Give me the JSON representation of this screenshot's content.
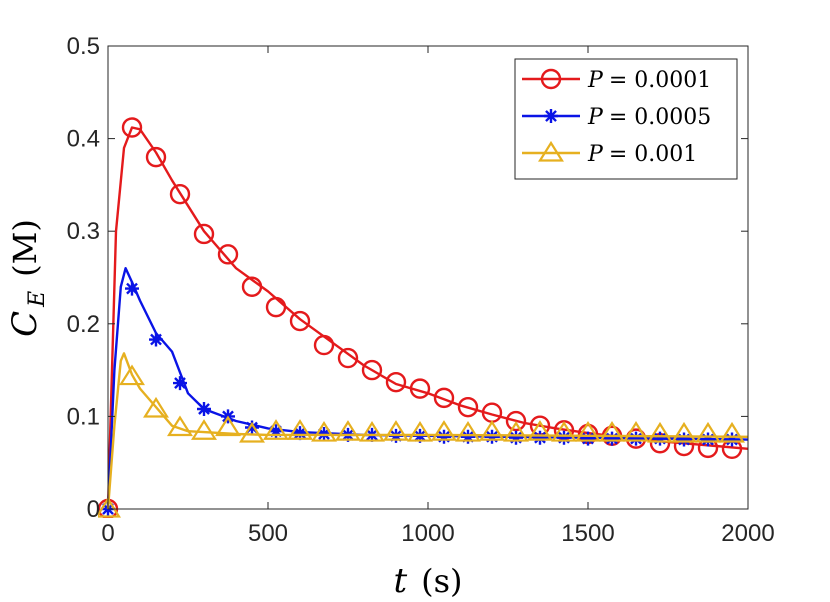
{
  "chart_data": {
    "type": "line",
    "title": "",
    "xlabel": {
      "var": "t",
      "unit": "(s)"
    },
    "ylabel": {
      "var": "C",
      "sub": "E",
      "unit": "(M)"
    },
    "xlim": [
      0,
      2000
    ],
    "ylim": [
      0,
      0.5
    ],
    "xticks": [
      0,
      500,
      1000,
      1500,
      2000
    ],
    "xtick_labels": [
      "0",
      "500",
      "1000",
      "1500",
      "2000"
    ],
    "yticks": [
      0,
      0.1,
      0.2,
      0.3,
      0.4,
      0.5
    ],
    "ytick_labels": [
      "0",
      "0.1",
      "0.2",
      "0.3",
      "0.4",
      "0.5"
    ],
    "grid": false,
    "legend_position": "top-right",
    "series": [
      {
        "name": "P = 0.0001",
        "label_var": "P",
        "label_value": "= 0.0001",
        "color": "#e41a1c",
        "marker": "circle",
        "line": [
          [
            0,
            0
          ],
          [
            25,
            0.3
          ],
          [
            50,
            0.39
          ],
          [
            75,
            0.412
          ],
          [
            100,
            0.41
          ],
          [
            150,
            0.385
          ],
          [
            200,
            0.355
          ],
          [
            300,
            0.3
          ],
          [
            400,
            0.26
          ],
          [
            500,
            0.235
          ],
          [
            600,
            0.205
          ],
          [
            700,
            0.18
          ],
          [
            800,
            0.155
          ],
          [
            900,
            0.135
          ],
          [
            1000,
            0.125
          ],
          [
            1100,
            0.112
          ],
          [
            1200,
            0.102
          ],
          [
            1300,
            0.093
          ],
          [
            1400,
            0.087
          ],
          [
            1500,
            0.082
          ],
          [
            1600,
            0.078
          ],
          [
            1700,
            0.074
          ],
          [
            1800,
            0.071
          ],
          [
            1900,
            0.068
          ],
          [
            2000,
            0.065
          ]
        ],
        "markers": [
          [
            0,
            0
          ],
          [
            75,
            0.412
          ],
          [
            150,
            0.38
          ],
          [
            225,
            0.34
          ],
          [
            300,
            0.297
          ],
          [
            375,
            0.275
          ],
          [
            450,
            0.24
          ],
          [
            525,
            0.218
          ],
          [
            600,
            0.203
          ],
          [
            675,
            0.177
          ],
          [
            750,
            0.163
          ],
          [
            825,
            0.15
          ],
          [
            900,
            0.137
          ],
          [
            975,
            0.13
          ],
          [
            1050,
            0.12
          ],
          [
            1125,
            0.11
          ],
          [
            1200,
            0.104
          ],
          [
            1275,
            0.095
          ],
          [
            1350,
            0.09
          ],
          [
            1425,
            0.085
          ],
          [
            1500,
            0.081
          ],
          [
            1575,
            0.079
          ],
          [
            1650,
            0.076
          ],
          [
            1725,
            0.071
          ],
          [
            1800,
            0.068
          ],
          [
            1875,
            0.066
          ],
          [
            1950,
            0.065
          ]
        ]
      },
      {
        "name": "P = 0.0005",
        "label_var": "P",
        "label_value": "= 0.0005",
        "color": "#0a14e6",
        "marker": "asterisk",
        "line": [
          [
            0,
            0
          ],
          [
            20,
            0.15
          ],
          [
            40,
            0.24
          ],
          [
            55,
            0.26
          ],
          [
            75,
            0.245
          ],
          [
            100,
            0.225
          ],
          [
            150,
            0.19
          ],
          [
            200,
            0.17
          ],
          [
            250,
            0.125
          ],
          [
            300,
            0.108
          ],
          [
            400,
            0.095
          ],
          [
            500,
            0.087
          ],
          [
            600,
            0.083
          ],
          [
            800,
            0.08
          ],
          [
            1000,
            0.079
          ],
          [
            1500,
            0.077
          ],
          [
            2000,
            0.075
          ]
        ],
        "markers": [
          [
            0,
            0
          ],
          [
            75,
            0.238
          ],
          [
            150,
            0.183
          ],
          [
            225,
            0.136
          ],
          [
            300,
            0.108
          ],
          [
            375,
            0.1
          ],
          [
            450,
            0.088
          ],
          [
            525,
            0.084
          ],
          [
            600,
            0.082
          ],
          [
            675,
            0.081
          ],
          [
            750,
            0.08
          ],
          [
            825,
            0.08
          ],
          [
            900,
            0.079
          ],
          [
            975,
            0.079
          ],
          [
            1050,
            0.078
          ],
          [
            1125,
            0.078
          ],
          [
            1200,
            0.078
          ],
          [
            1275,
            0.077
          ],
          [
            1350,
            0.077
          ],
          [
            1425,
            0.077
          ],
          [
            1500,
            0.076
          ],
          [
            1575,
            0.076
          ],
          [
            1650,
            0.076
          ],
          [
            1725,
            0.076
          ],
          [
            1800,
            0.075
          ],
          [
            1875,
            0.075
          ],
          [
            1950,
            0.075
          ]
        ]
      },
      {
        "name": "P = 0.001",
        "label_var": "P",
        "label_value": "= 0.001",
        "color": "#e6b020",
        "marker": "triangle",
        "line": [
          [
            0,
            0
          ],
          [
            20,
            0.09
          ],
          [
            40,
            0.16
          ],
          [
            50,
            0.168
          ],
          [
            75,
            0.145
          ],
          [
            100,
            0.13
          ],
          [
            150,
            0.11
          ],
          [
            200,
            0.09
          ],
          [
            250,
            0.084
          ],
          [
            300,
            0.083
          ],
          [
            400,
            0.081
          ],
          [
            500,
            0.08
          ],
          [
            700,
            0.08
          ],
          [
            1000,
            0.08
          ],
          [
            1500,
            0.079
          ],
          [
            2000,
            0.078
          ]
        ],
        "markers": [
          [
            0,
            0
          ],
          [
            75,
            0.143
          ],
          [
            150,
            0.108
          ],
          [
            225,
            0.088
          ],
          [
            300,
            0.084
          ],
          [
            375,
            0.088
          ],
          [
            450,
            0.081
          ],
          [
            525,
            0.084
          ],
          [
            600,
            0.084
          ],
          [
            675,
            0.082
          ],
          [
            750,
            0.083
          ],
          [
            825,
            0.082
          ],
          [
            900,
            0.083
          ],
          [
            975,
            0.082
          ],
          [
            1050,
            0.083
          ],
          [
            1125,
            0.082
          ],
          [
            1200,
            0.083
          ],
          [
            1275,
            0.082
          ],
          [
            1350,
            0.083
          ],
          [
            1425,
            0.082
          ],
          [
            1500,
            0.082
          ],
          [
            1575,
            0.082
          ],
          [
            1650,
            0.082
          ],
          [
            1725,
            0.081
          ],
          [
            1800,
            0.081
          ],
          [
            1875,
            0.081
          ],
          [
            1950,
            0.081
          ]
        ]
      }
    ]
  }
}
